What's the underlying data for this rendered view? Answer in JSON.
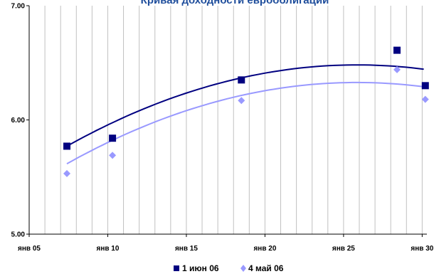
{
  "chart_data": {
    "type": "scatter",
    "title": "Кривая доходности еврооблигаций",
    "xlabel": "",
    "ylabel": "",
    "x_ticks": [
      "янв 05",
      "янв 10",
      "янв 15",
      "янв 20",
      "янв 25",
      "янв 30"
    ],
    "x_tick_years": [
      2005,
      2010,
      2015,
      2020,
      2025,
      2030
    ],
    "xlim": [
      2005,
      2030.3
    ],
    "ylim": [
      5.0,
      7.0
    ],
    "y_ticks": [
      "5.00",
      "6.00",
      "7.00"
    ],
    "y_tick_values": [
      5.0,
      6.0,
      7.0
    ],
    "grid": {
      "vertical": true,
      "horizontal": false
    },
    "legend_position": "bottom",
    "series": [
      {
        "name": "1 июн 06",
        "marker": "square",
        "color": "#000080",
        "points": [
          {
            "x": 2007.4,
            "y": 5.77
          },
          {
            "x": 2010.3,
            "y": 5.84
          },
          {
            "x": 2018.5,
            "y": 6.35
          },
          {
            "x": 2028.4,
            "y": 6.61
          },
          {
            "x": 2030.2,
            "y": 6.3
          }
        ],
        "trend": {
          "type": "polynomial",
          "x_from": 2007.4,
          "x_to": 2030.1,
          "coeffs": [
            -0.0020856,
            0.10791,
            5.0857
          ],
          "x_offset": 2000
        }
      },
      {
        "name": "4 май 06",
        "marker": "diamond",
        "color": "#9999ff",
        "points": [
          {
            "x": 2007.4,
            "y": 5.53
          },
          {
            "x": 2010.3,
            "y": 5.69
          },
          {
            "x": 2018.5,
            "y": 6.17
          },
          {
            "x": 2028.4,
            "y": 6.44
          },
          {
            "x": 2030.2,
            "y": 6.18
          }
        ],
        "trend": {
          "type": "polynomial",
          "x_from": 2007.4,
          "x_to": 2030.1,
          "coeffs": [
            -0.0020856,
            0.10791,
            4.9318
          ],
          "x_offset": 2000
        }
      }
    ]
  }
}
